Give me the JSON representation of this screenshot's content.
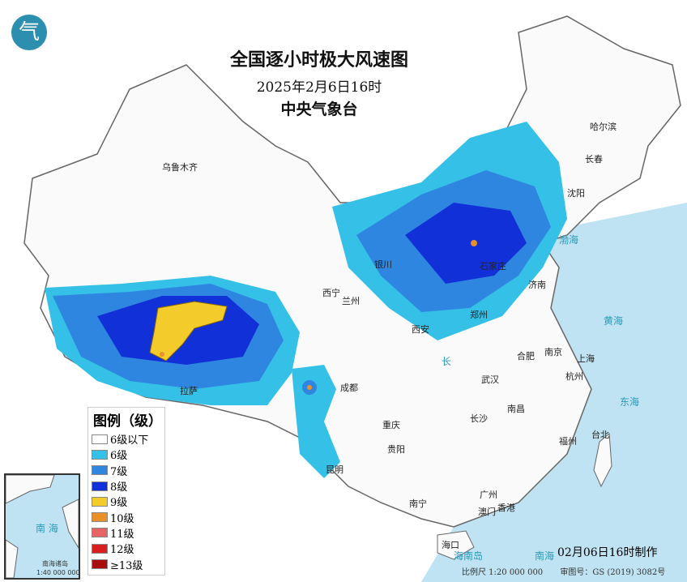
{
  "header": {
    "title": "全国逐小时极大风速图",
    "datetime": "2025年2月6日16时",
    "agency": "中央气象台",
    "logo_text": "气"
  },
  "legend": {
    "title": "图例（级）",
    "items": [
      {
        "label": "6级以下",
        "color": "#ffffff"
      },
      {
        "label": "6级",
        "color": "#35c0e8"
      },
      {
        "label": "7级",
        "color": "#2f86e0"
      },
      {
        "label": "8级",
        "color": "#1230d8"
      },
      {
        "label": "9级",
        "color": "#f3cc2b"
      },
      {
        "label": "10级",
        "color": "#e8912a"
      },
      {
        "label": "11级",
        "color": "#e76466"
      },
      {
        "label": "12级",
        "color": "#d81e1e"
      },
      {
        "label": "≥13级",
        "color": "#a80d12"
      }
    ]
  },
  "cities": [
    "乌鲁木齐",
    "哈尔滨",
    "长春",
    "沈阳",
    "石家庄",
    "济南",
    "郑州",
    "西安",
    "兰州",
    "西宁",
    "拉萨",
    "成都",
    "重庆",
    "贵阳",
    "昆明",
    "南宁",
    "广州",
    "澳门",
    "香港",
    "海口",
    "长沙",
    "南昌",
    "武汉",
    "合肥",
    "南京",
    "上海",
    "杭州",
    "福州",
    "台北",
    "银川"
  ],
  "seas": [
    "渤海",
    "黄海",
    "东海",
    "南海",
    "长",
    "海南岛"
  ],
  "inset": {
    "sea": "南 海",
    "label": "南海诸岛",
    "scale": "1:40 000 000"
  },
  "footer": {
    "made": "02月06日16时制作",
    "scale": "比例尺 1:20 000 000",
    "approval": "审图号：GS (2019) 3082号"
  }
}
